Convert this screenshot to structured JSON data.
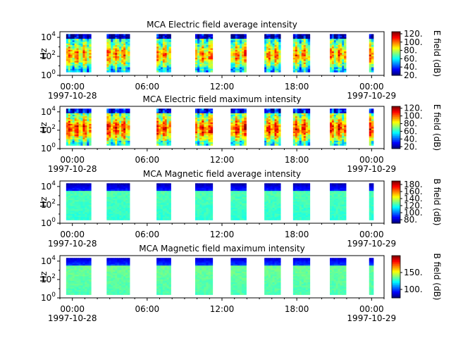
{
  "chart_data": [
    {
      "type": "heatmap",
      "title": "MCA  Electric field average intensity",
      "ylabel": "Hz",
      "colorbar_label": "E field (dB)",
      "colorbar_ticks": [
        "120.",
        "100.",
        "80.",
        "60.",
        "40.",
        "20."
      ],
      "colorbar_range": [
        20,
        125
      ],
      "yticks": [
        "10^4",
        "10^2",
        "10^0"
      ],
      "ylim_log10": [
        0,
        4.6
      ],
      "xticks": [
        {
          "time": "00:00",
          "date": "1997-10-28"
        },
        {
          "time": "06:00",
          "date": ""
        },
        {
          "time": "12:00",
          "date": ""
        },
        {
          "time": "18:00",
          "date": ""
        },
        {
          "time": "00:00",
          "date": "1997-10-29"
        }
      ],
      "data_intervals_hours": [
        [
          -0.5,
          1.5
        ],
        [
          2.75,
          4.6
        ],
        [
          6.75,
          7.9
        ],
        [
          9.85,
          11.25
        ],
        [
          12.7,
          13.95
        ],
        [
          15.4,
          16.7
        ],
        [
          17.7,
          19.05
        ],
        [
          20.65,
          21.95
        ],
        [
          23.8,
          24.15
        ]
      ],
      "structure": "Intensity peaks (~70-90 dB) between 10^1 and 10^3 Hz, weaker above 10^3.5 Hz (~25-40 dB)"
    },
    {
      "type": "heatmap",
      "title": "MCA  Electric field maximum intensity",
      "ylabel": "Hz",
      "colorbar_label": "E field (dB)",
      "colorbar_ticks": [
        "120.",
        "100.",
        "80.",
        "60.",
        "40.",
        "20."
      ],
      "colorbar_range": [
        15,
        125
      ],
      "yticks": [
        "10^4",
        "10^2",
        "10^0"
      ],
      "ylim_log10": [
        0,
        4.6
      ],
      "xticks": [
        {
          "time": "00:00",
          "date": "1997-10-28"
        },
        {
          "time": "06:00",
          "date": ""
        },
        {
          "time": "12:00",
          "date": ""
        },
        {
          "time": "18:00",
          "date": ""
        },
        {
          "time": "00:00",
          "date": "1997-10-29"
        }
      ],
      "data_intervals_hours": [
        [
          -0.5,
          1.5
        ],
        [
          2.75,
          4.6
        ],
        [
          6.75,
          7.9
        ],
        [
          9.85,
          11.25
        ],
        [
          12.7,
          13.95
        ],
        [
          15.4,
          16.7
        ],
        [
          17.7,
          19.05
        ],
        [
          20.65,
          21.95
        ],
        [
          23.8,
          24.15
        ]
      ],
      "structure": "Peaks (~80-95 dB) between 10^1 and 10^3 Hz, lower values at top band"
    },
    {
      "type": "heatmap",
      "title": "MCA  Magnetic field average intensity",
      "ylabel": "Hz",
      "colorbar_label": "B field (dB)",
      "colorbar_ticks": [
        "180.",
        "160.",
        "140.",
        "120.",
        "100.",
        "80."
      ],
      "colorbar_range": [
        70,
        190
      ],
      "yticks": [
        "10^4",
        "10^2",
        "10^0"
      ],
      "ylim_log10": [
        0,
        4.6
      ],
      "xticks": [
        {
          "time": "00:00",
          "date": "1997-10-28"
        },
        {
          "time": "06:00",
          "date": ""
        },
        {
          "time": "12:00",
          "date": ""
        },
        {
          "time": "18:00",
          "date": ""
        },
        {
          "time": "00:00",
          "date": "1997-10-29"
        }
      ],
      "data_intervals_hours": [
        [
          -0.5,
          1.5
        ],
        [
          2.75,
          4.6
        ],
        [
          6.75,
          7.9
        ],
        [
          9.85,
          11.25
        ],
        [
          12.7,
          13.95
        ],
        [
          15.4,
          16.7
        ],
        [
          17.7,
          19.05
        ],
        [
          20.65,
          21.95
        ],
        [
          23.8,
          24.15
        ]
      ],
      "structure": "Flat spectrum ~110-120 dB below 10^3 Hz, dropping to ~75 dB above 10^3.5 Hz"
    },
    {
      "type": "heatmap",
      "title": "MCA  Magnetic field maximum intensity",
      "ylabel": "Hz",
      "colorbar_label": "B field (dB)",
      "colorbar_ticks": [
        "150.",
        "100."
      ],
      "colorbar_range": [
        75,
        200
      ],
      "yticks": [
        "10^4",
        "10^2",
        "10^0"
      ],
      "ylim_log10": [
        0,
        4.6
      ],
      "xticks": [
        {
          "time": "00:00",
          "date": "1997-10-28"
        },
        {
          "time": "06:00",
          "date": ""
        },
        {
          "time": "12:00",
          "date": ""
        },
        {
          "time": "18:00",
          "date": ""
        },
        {
          "time": "00:00",
          "date": "1997-10-29"
        }
      ],
      "data_intervals_hours": [
        [
          -0.5,
          1.5
        ],
        [
          2.75,
          4.6
        ],
        [
          6.75,
          7.9
        ],
        [
          9.85,
          11.25
        ],
        [
          12.7,
          13.95
        ],
        [
          15.4,
          16.7
        ],
        [
          17.7,
          19.05
        ],
        [
          20.65,
          21.95
        ],
        [
          23.8,
          24.15
        ]
      ],
      "structure": "Flat spectrum ~115-125 dB below 10^3 Hz, dropping to ~80 dB above 10^3.5 Hz"
    }
  ]
}
